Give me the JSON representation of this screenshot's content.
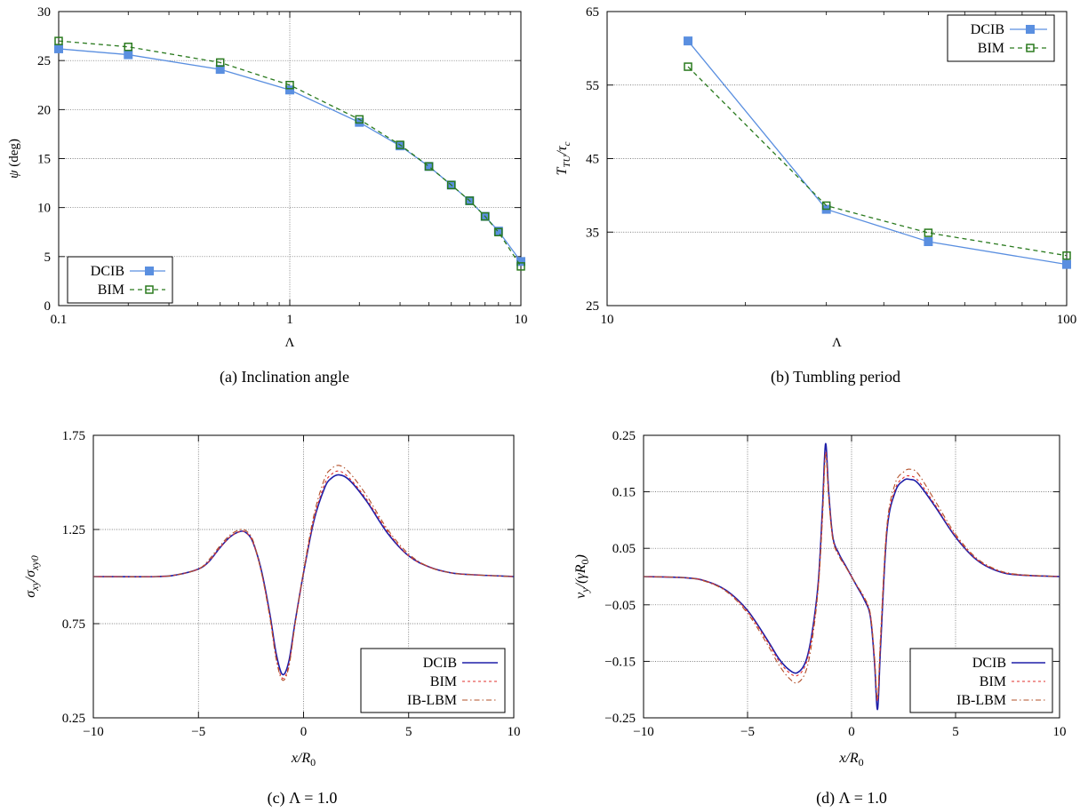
{
  "captions": {
    "a": "(a) Inclination angle",
    "b": "(b) Tumbling period",
    "c": "(c) Λ = 1.0",
    "d": "(d) Λ = 1.0"
  },
  "chart_data": [
    {
      "id": "a",
      "type": "line",
      "xscale": "log",
      "xlim": [
        0.1,
        10
      ],
      "ylim": [
        0,
        30
      ],
      "xticks": [
        0.1,
        1,
        10
      ],
      "xtick_labels": [
        "0.1",
        "1",
        "10"
      ],
      "yticks": [
        0,
        5,
        10,
        15,
        20,
        25,
        30
      ],
      "ytick_labels": [
        "0",
        "5",
        "10",
        "15",
        "20",
        "25",
        "30"
      ],
      "xlabel": "Λ",
      "ylabel": "ψ (deg)",
      "grid": true,
      "legend_position": "bottom-left",
      "series": [
        {
          "name": "DCIB",
          "color": "#5a8fe0",
          "dash": "",
          "marker": "filled-square",
          "x": [
            0.1,
            0.2,
            0.5,
            1,
            2,
            3,
            4,
            5,
            6,
            7,
            8,
            10
          ],
          "y": [
            26.2,
            25.6,
            24.1,
            22.0,
            18.7,
            16.3,
            14.2,
            12.3,
            10.7,
            9.1,
            7.6,
            4.5
          ]
        },
        {
          "name": "BIM",
          "color": "#2a7a1e",
          "dash": "5,4",
          "marker": "open-square",
          "x": [
            0.1,
            0.2,
            0.5,
            1,
            2,
            3,
            4,
            5,
            6,
            7,
            8,
            10
          ],
          "y": [
            27.0,
            26.4,
            24.8,
            22.5,
            19.0,
            16.4,
            14.2,
            12.3,
            10.7,
            9.1,
            7.5,
            4.0
          ]
        }
      ]
    },
    {
      "id": "b",
      "type": "line",
      "xscale": "log",
      "xlim": [
        10,
        100
      ],
      "ylim": [
        25,
        65
      ],
      "xticks": [
        10,
        100
      ],
      "xtick_labels": [
        "10",
        "100"
      ],
      "yticks": [
        25,
        35,
        45,
        55,
        65
      ],
      "ytick_labels": [
        "25",
        "35",
        "45",
        "55",
        "65"
      ],
      "xlabel": "Λ",
      "ylabel": "T_TU/τ_c",
      "grid": true,
      "legend_position": "top-right",
      "series": [
        {
          "name": "DCIB",
          "color": "#5a8fe0",
          "dash": "",
          "marker": "filled-square",
          "x": [
            15,
            30,
            50,
            100
          ],
          "y": [
            61.0,
            38.1,
            33.7,
            30.6
          ]
        },
        {
          "name": "BIM",
          "color": "#2a7a1e",
          "dash": "5,4",
          "marker": "open-square",
          "x": [
            15,
            30,
            50,
            100
          ],
          "y": [
            57.5,
            38.6,
            34.9,
            31.8
          ]
        }
      ]
    },
    {
      "id": "c",
      "type": "line",
      "xscale": "linear",
      "xlim": [
        -10,
        10
      ],
      "ylim": [
        0.25,
        1.75
      ],
      "xticks": [
        -10,
        -5,
        0,
        5,
        10
      ],
      "xtick_labels": [
        "−10",
        "−5",
        "0",
        "5",
        "10"
      ],
      "yticks": [
        0.25,
        0.75,
        1.25,
        1.75
      ],
      "ytick_labels": [
        "0.25",
        "0.75",
        "1.25",
        "1.75"
      ],
      "xlabel": "x/R0",
      "ylabel": "σxy/σxy0",
      "grid": true,
      "legend_position": "bottom-right",
      "series": [
        {
          "name": "DCIB",
          "color": "#1f1fa8",
          "dash": "",
          "width": 1.6,
          "x": [
            -10,
            -7,
            -6,
            -5,
            -4.5,
            -4,
            -3.5,
            -3,
            -2.7,
            -2.4,
            -2,
            -1.6,
            -1.3,
            -1.0,
            -0.7,
            -0.4,
            0,
            0.5,
            1.0,
            1.3,
            1.7,
            2.2,
            3,
            4,
            5,
            6,
            7,
            8,
            10
          ],
          "y": [
            1.0,
            1.0,
            1.01,
            1.04,
            1.08,
            1.15,
            1.21,
            1.24,
            1.23,
            1.18,
            1.03,
            0.8,
            0.59,
            0.48,
            0.55,
            0.76,
            1.02,
            1.3,
            1.47,
            1.52,
            1.54,
            1.51,
            1.4,
            1.23,
            1.11,
            1.05,
            1.02,
            1.01,
            1.0
          ]
        },
        {
          "name": "BIM",
          "color": "#e0302c",
          "dash": "3,3",
          "width": 1.1,
          "x": [
            -10,
            -7,
            -6,
            -5,
            -4.5,
            -4,
            -3.5,
            -3,
            -2.7,
            -2.4,
            -2,
            -1.6,
            -1.3,
            -1.0,
            -0.7,
            -0.4,
            0,
            0.5,
            1.0,
            1.3,
            1.7,
            2.2,
            3,
            4,
            5,
            6,
            7,
            8,
            10
          ],
          "y": [
            1.0,
            1.0,
            1.01,
            1.04,
            1.08,
            1.15,
            1.21,
            1.24,
            1.23,
            1.18,
            1.02,
            0.79,
            0.57,
            0.46,
            0.53,
            0.75,
            1.02,
            1.31,
            1.49,
            1.54,
            1.56,
            1.52,
            1.41,
            1.24,
            1.11,
            1.05,
            1.02,
            1.01,
            1.0
          ]
        },
        {
          "name": "IB-LBM",
          "color": "#b3502a",
          "dash": "6,3,1.5,3",
          "width": 1.1,
          "x": [
            -10,
            -7,
            -6,
            -5,
            -4.5,
            -4,
            -3.5,
            -3,
            -2.7,
            -2.4,
            -2,
            -1.6,
            -1.3,
            -1.0,
            -0.7,
            -0.4,
            0,
            0.5,
            1.0,
            1.3,
            1.7,
            2.2,
            3,
            4,
            5,
            6,
            7,
            8,
            10
          ],
          "y": [
            1.0,
            1.0,
            1.01,
            1.04,
            1.09,
            1.16,
            1.22,
            1.25,
            1.24,
            1.19,
            1.02,
            0.78,
            0.56,
            0.45,
            0.52,
            0.75,
            1.03,
            1.33,
            1.52,
            1.57,
            1.59,
            1.55,
            1.43,
            1.25,
            1.12,
            1.05,
            1.02,
            1.01,
            1.0
          ]
        }
      ]
    },
    {
      "id": "d",
      "type": "line",
      "xscale": "linear",
      "xlim": [
        -10,
        10
      ],
      "ylim": [
        -0.25,
        0.25
      ],
      "xticks": [
        -10,
        -5,
        0,
        5,
        10
      ],
      "xtick_labels": [
        "−10",
        "−5",
        "0",
        "5",
        "10"
      ],
      "yticks": [
        -0.25,
        -0.15,
        -0.05,
        0.05,
        0.15,
        0.25
      ],
      "ytick_labels": [
        "−0.25",
        "−0.15",
        "−0.05",
        "0.05",
        "0.15",
        "0.25"
      ],
      "xlabel": "x/R0",
      "ylabel": "vy/(γR0)",
      "grid": true,
      "legend_position": "bottom-right",
      "series": [
        {
          "name": "DCIB",
          "color": "#1f1fa8",
          "dash": "",
          "width": 1.6,
          "x": [
            -10,
            -8,
            -7,
            -6,
            -5,
            -4,
            -3.5,
            -3,
            -2.6,
            -2.2,
            -1.9,
            -1.6,
            -1.4,
            -1.25,
            -1.1,
            -0.9,
            -0.6,
            -0.3,
            0,
            0.3,
            0.6,
            0.9,
            1.1,
            1.25,
            1.4,
            1.7,
            2.1,
            2.5,
            2.8,
            3.2,
            4,
            5,
            6,
            7,
            8,
            10
          ],
          "y": [
            0.0,
            -0.002,
            -0.008,
            -0.025,
            -0.06,
            -0.115,
            -0.145,
            -0.165,
            -0.17,
            -0.15,
            -0.1,
            -0.01,
            0.12,
            0.235,
            0.15,
            0.07,
            0.04,
            0.02,
            0.0,
            -0.02,
            -0.04,
            -0.07,
            -0.15,
            -0.235,
            -0.12,
            0.08,
            0.15,
            0.17,
            0.172,
            0.165,
            0.125,
            0.07,
            0.03,
            0.01,
            0.003,
            0.0
          ]
        },
        {
          "name": "BIM",
          "color": "#e0302c",
          "dash": "3,3",
          "width": 1.1,
          "x": [
            -10,
            -8,
            -7,
            -6,
            -5,
            -4,
            -3.5,
            -3,
            -2.6,
            -2.2,
            -1.9,
            -1.6,
            -1.4,
            -1.25,
            -1.1,
            -0.9,
            -0.6,
            -0.3,
            0,
            0.3,
            0.6,
            0.9,
            1.1,
            1.25,
            1.4,
            1.7,
            2.1,
            2.5,
            2.8,
            3.2,
            4,
            5,
            6,
            7,
            8,
            10
          ],
          "y": [
            0.0,
            -0.002,
            -0.008,
            -0.026,
            -0.062,
            -0.118,
            -0.149,
            -0.17,
            -0.175,
            -0.155,
            -0.105,
            -0.015,
            0.11,
            0.22,
            0.145,
            0.068,
            0.038,
            0.019,
            0.0,
            -0.019,
            -0.038,
            -0.068,
            -0.145,
            -0.22,
            -0.11,
            0.085,
            0.155,
            0.175,
            0.178,
            0.17,
            0.128,
            0.072,
            0.031,
            0.011,
            0.003,
            0.0
          ]
        },
        {
          "name": "IB-LBM",
          "color": "#b3502a",
          "dash": "6,3,1.5,3",
          "width": 1.1,
          "x": [
            -10,
            -8,
            -7,
            -6,
            -5,
            -4,
            -3.5,
            -3,
            -2.6,
            -2.2,
            -1.9,
            -1.6,
            -1.4,
            -1.25,
            -1.1,
            -0.9,
            -0.6,
            -0.3,
            0,
            0.3,
            0.6,
            0.9,
            1.1,
            1.25,
            1.4,
            1.7,
            2.1,
            2.5,
            2.8,
            3.2,
            4,
            5,
            6,
            7,
            8,
            10
          ],
          "y": [
            0.0,
            -0.002,
            -0.009,
            -0.027,
            -0.065,
            -0.123,
            -0.156,
            -0.18,
            -0.188,
            -0.168,
            -0.115,
            -0.02,
            0.1,
            0.215,
            0.14,
            0.065,
            0.036,
            0.018,
            0.0,
            -0.018,
            -0.036,
            -0.065,
            -0.14,
            -0.215,
            -0.1,
            0.09,
            0.165,
            0.185,
            0.19,
            0.182,
            0.135,
            0.075,
            0.033,
            0.012,
            0.004,
            0.0
          ]
        }
      ]
    }
  ]
}
